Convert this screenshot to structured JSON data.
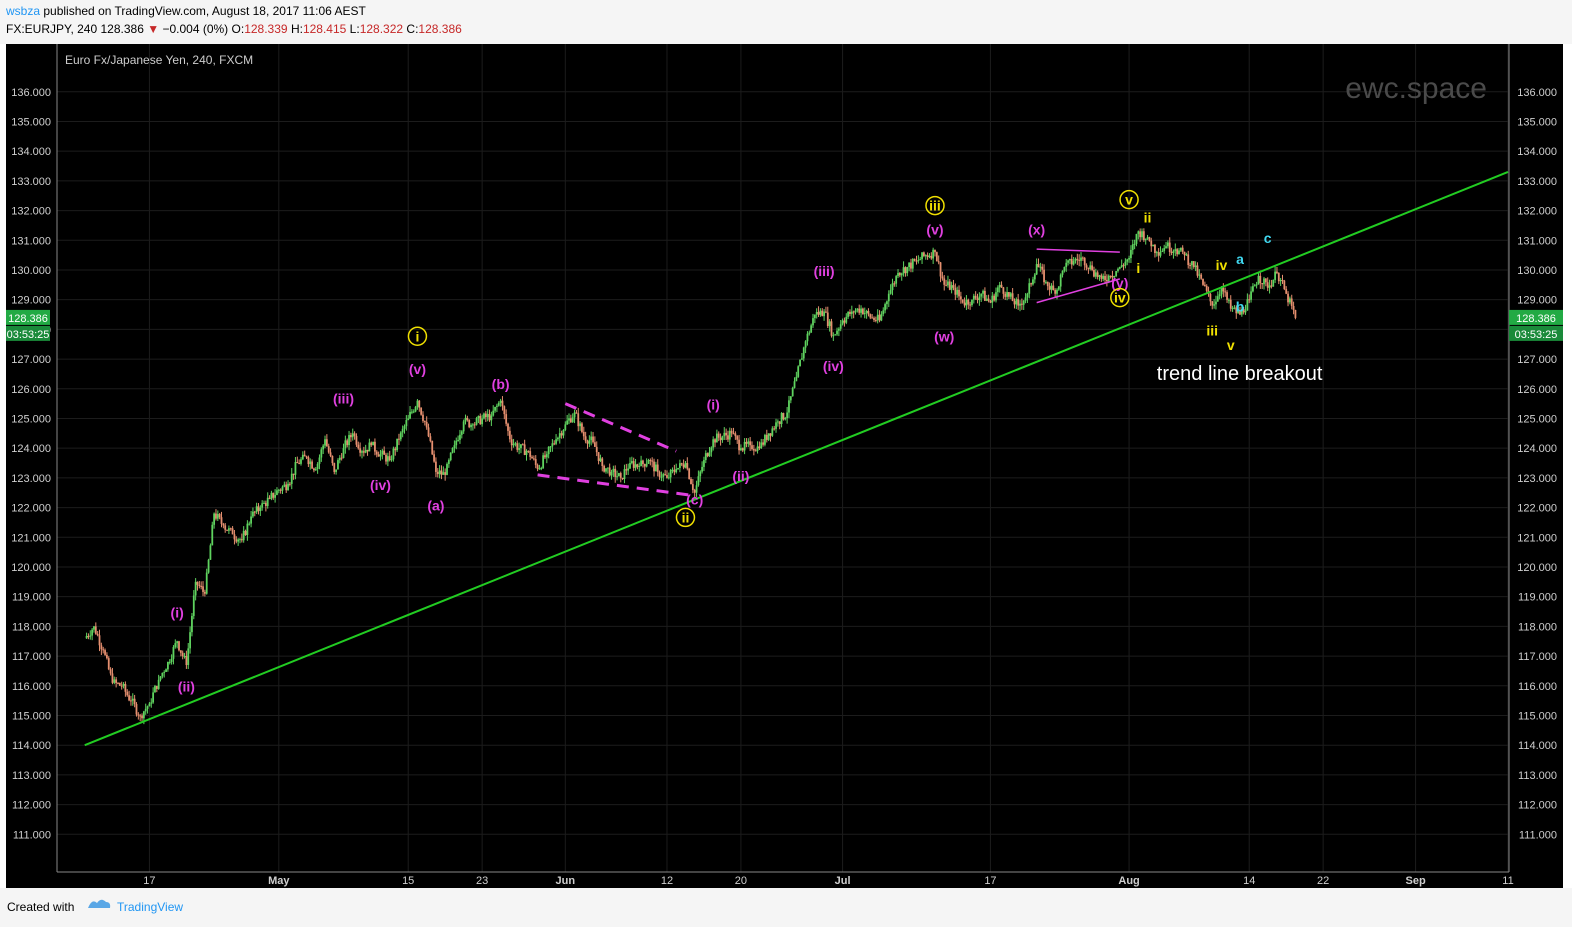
{
  "header": {
    "user": "wsbza",
    "published_text": "published on TradingView.com, August 18, 2017 11:06 AEST",
    "symbol": "FX:EURJPY, 240",
    "last": "128.386",
    "change": "−0.004 (0%)",
    "open_label": "O:",
    "open": "128.339",
    "high_label": "H:",
    "high": "128.415",
    "low_label": "L:",
    "low": "128.322",
    "close_label": "C:",
    "close": "128.386"
  },
  "footer": {
    "created_with": "Created with",
    "brand": "TradingView"
  },
  "colors": {
    "background": "#000000",
    "up": "#5fd35f",
    "down": "#e58f6f",
    "trendline": "#22cc22",
    "magenta": "#e040e0",
    "yellow": "#f0e000",
    "cyan": "#40d8f0",
    "price_badge": "#22aa44"
  },
  "chart_data": {
    "type": "candlestick",
    "title": "Euro Fx/Japanese Yen, 240, FXCM",
    "watermark": "ewc.space",
    "x_ticks": [
      "17",
      "May",
      "15",
      "23",
      "Jun",
      "12",
      "20",
      "Jul",
      "17",
      "Aug",
      "14",
      "22",
      "Sep",
      "11"
    ],
    "y_ticks": [
      "136.000",
      "135.000",
      "134.000",
      "133.000",
      "132.000",
      "131.000",
      "130.000",
      "129.000",
      "128.000",
      "127.000",
      "126.000",
      "125.000",
      "124.000",
      "123.000",
      "122.000",
      "121.000",
      "120.000",
      "119.000",
      "118.000",
      "117.000",
      "116.000",
      "115.000",
      "114.000",
      "113.000",
      "112.000",
      "111.000"
    ],
    "ylim": [
      110.0,
      136.8
    ],
    "last_price": "128.386",
    "countdown": "03:53:25",
    "price_path": [
      {
        "date": "2017-04-10",
        "price": 117.6
      },
      {
        "date": "2017-04-11",
        "price": 118.0
      },
      {
        "date": "2017-04-12",
        "price": 117.2
      },
      {
        "date": "2017-04-13",
        "price": 116.1
      },
      {
        "date": "2017-04-14",
        "price": 116.0
      },
      {
        "date": "2017-04-15",
        "price": 115.5
      },
      {
        "date": "2017-04-16",
        "price": 115.0
      },
      {
        "date": "2017-04-17",
        "price": 115.4
      },
      {
        "date": "2017-04-18",
        "price": 116.2
      },
      {
        "date": "2017-04-19",
        "price": 116.8
      },
      {
        "date": "2017-04-20",
        "price": 117.5
      },
      {
        "date": "2017-04-21",
        "price": 116.7
      },
      {
        "date": "2017-04-22",
        "price": 119.5
      },
      {
        "date": "2017-04-23",
        "price": 119.1
      },
      {
        "date": "2017-04-24",
        "price": 121.8
      },
      {
        "date": "2017-04-25",
        "price": 121.4
      },
      {
        "date": "2017-04-26",
        "price": 121.1
      },
      {
        "date": "2017-04-27",
        "price": 120.9
      },
      {
        "date": "2017-04-28",
        "price": 121.7
      },
      {
        "date": "2017-04-29",
        "price": 122.0
      },
      {
        "date": "2017-04-30",
        "price": 122.3
      },
      {
        "date": "2017-05-01",
        "price": 122.6
      },
      {
        "date": "2017-05-02",
        "price": 122.8
      },
      {
        "date": "2017-05-03",
        "price": 123.5
      },
      {
        "date": "2017-05-04",
        "price": 123.7
      },
      {
        "date": "2017-05-05",
        "price": 123.3
      },
      {
        "date": "2017-05-06",
        "price": 124.3
      },
      {
        "date": "2017-05-07",
        "price": 123.2
      },
      {
        "date": "2017-05-08",
        "price": 124.0
      },
      {
        "date": "2017-05-09",
        "price": 124.5
      },
      {
        "date": "2017-05-10",
        "price": 123.9
      },
      {
        "date": "2017-05-11",
        "price": 124.1
      },
      {
        "date": "2017-05-12",
        "price": 123.8
      },
      {
        "date": "2017-05-13",
        "price": 123.6
      },
      {
        "date": "2017-05-14",
        "price": 124.3
      },
      {
        "date": "2017-05-15",
        "price": 125.0
      },
      {
        "date": "2017-05-16",
        "price": 125.6
      },
      {
        "date": "2017-05-17",
        "price": 124.7
      },
      {
        "date": "2017-05-18",
        "price": 123.2
      },
      {
        "date": "2017-05-19",
        "price": 123.1
      },
      {
        "date": "2017-05-20",
        "price": 124.1
      },
      {
        "date": "2017-05-21",
        "price": 124.9
      },
      {
        "date": "2017-05-22",
        "price": 124.8
      },
      {
        "date": "2017-05-23",
        "price": 125.0
      },
      {
        "date": "2017-05-24",
        "price": 125.1
      },
      {
        "date": "2017-05-25",
        "price": 125.6
      },
      {
        "date": "2017-05-26",
        "price": 124.3
      },
      {
        "date": "2017-05-27",
        "price": 124.0
      },
      {
        "date": "2017-05-28",
        "price": 123.9
      },
      {
        "date": "2017-05-29",
        "price": 123.3
      },
      {
        "date": "2017-05-30",
        "price": 123.8
      },
      {
        "date": "2017-05-31",
        "price": 124.3
      },
      {
        "date": "2017-06-01",
        "price": 124.8
      },
      {
        "date": "2017-06-02",
        "price": 125.2
      },
      {
        "date": "2017-06-03",
        "price": 124.4
      },
      {
        "date": "2017-06-04",
        "price": 124.2
      },
      {
        "date": "2017-06-05",
        "price": 123.4
      },
      {
        "date": "2017-06-06",
        "price": 123.2
      },
      {
        "date": "2017-06-07",
        "price": 123.0
      },
      {
        "date": "2017-06-08",
        "price": 123.5
      },
      {
        "date": "2017-06-09",
        "price": 123.4
      },
      {
        "date": "2017-06-10",
        "price": 123.6
      },
      {
        "date": "2017-06-11",
        "price": 123.2
      },
      {
        "date": "2017-06-12",
        "price": 123.0
      },
      {
        "date": "2017-06-13",
        "price": 123.3
      },
      {
        "date": "2017-06-14",
        "price": 123.5
      },
      {
        "date": "2017-06-15",
        "price": 122.5
      },
      {
        "date": "2017-06-16",
        "price": 123.6
      },
      {
        "date": "2017-06-17",
        "price": 124.3
      },
      {
        "date": "2017-06-18",
        "price": 124.4
      },
      {
        "date": "2017-06-19",
        "price": 124.5
      },
      {
        "date": "2017-06-20",
        "price": 124.0
      },
      {
        "date": "2017-06-21",
        "price": 124.1
      },
      {
        "date": "2017-06-22",
        "price": 124.0
      },
      {
        "date": "2017-06-23",
        "price": 124.5
      },
      {
        "date": "2017-06-24",
        "price": 124.9
      },
      {
        "date": "2017-06-25",
        "price": 125.2
      },
      {
        "date": "2017-06-26",
        "price": 126.4
      },
      {
        "date": "2017-06-27",
        "price": 127.6
      },
      {
        "date": "2017-06-28",
        "price": 128.5
      },
      {
        "date": "2017-06-29",
        "price": 128.6
      },
      {
        "date": "2017-06-30",
        "price": 127.8
      },
      {
        "date": "2017-07-01",
        "price": 128.3
      },
      {
        "date": "2017-07-02",
        "price": 128.6
      },
      {
        "date": "2017-07-03",
        "price": 128.7
      },
      {
        "date": "2017-07-04",
        "price": 128.4
      },
      {
        "date": "2017-07-05",
        "price": 128.3
      },
      {
        "date": "2017-07-06",
        "price": 129.2
      },
      {
        "date": "2017-07-07",
        "price": 129.9
      },
      {
        "date": "2017-07-08",
        "price": 130.1
      },
      {
        "date": "2017-07-09",
        "price": 130.3
      },
      {
        "date": "2017-07-10",
        "price": 130.5
      },
      {
        "date": "2017-07-11",
        "price": 130.6
      },
      {
        "date": "2017-07-12",
        "price": 129.5
      },
      {
        "date": "2017-07-13",
        "price": 129.4
      },
      {
        "date": "2017-07-14",
        "price": 128.9
      },
      {
        "date": "2017-07-15",
        "price": 129.0
      },
      {
        "date": "2017-07-16",
        "price": 129.2
      },
      {
        "date": "2017-07-17",
        "price": 128.9
      },
      {
        "date": "2017-07-18",
        "price": 129.5
      },
      {
        "date": "2017-07-19",
        "price": 129.1
      },
      {
        "date": "2017-07-20",
        "price": 128.8
      },
      {
        "date": "2017-07-21",
        "price": 129.2
      },
      {
        "date": "2017-07-22",
        "price": 130.2
      },
      {
        "date": "2017-07-23",
        "price": 129.6
      },
      {
        "date": "2017-07-24",
        "price": 129.2
      },
      {
        "date": "2017-07-25",
        "price": 130.1
      },
      {
        "date": "2017-07-26",
        "price": 130.3
      },
      {
        "date": "2017-07-27",
        "price": 130.4
      },
      {
        "date": "2017-07-28",
        "price": 130.0
      },
      {
        "date": "2017-07-29",
        "price": 129.7
      },
      {
        "date": "2017-07-30",
        "price": 129.8
      },
      {
        "date": "2017-07-31",
        "price": 130.1
      },
      {
        "date": "2017-08-01",
        "price": 130.4
      },
      {
        "date": "2017-08-02",
        "price": 131.3
      },
      {
        "date": "2017-08-03",
        "price": 131.1
      },
      {
        "date": "2017-08-04",
        "price": 130.6
      },
      {
        "date": "2017-08-05",
        "price": 130.8
      },
      {
        "date": "2017-08-06",
        "price": 130.7
      },
      {
        "date": "2017-08-07",
        "price": 130.5
      },
      {
        "date": "2017-08-08",
        "price": 130.1
      },
      {
        "date": "2017-08-09",
        "price": 129.5
      },
      {
        "date": "2017-08-10",
        "price": 128.8
      },
      {
        "date": "2017-08-11",
        "price": 129.4
      },
      {
        "date": "2017-08-12",
        "price": 128.7
      },
      {
        "date": "2017-08-13",
        "price": 128.5
      },
      {
        "date": "2017-08-14",
        "price": 129.0
      },
      {
        "date": "2017-08-15",
        "price": 129.8
      },
      {
        "date": "2017-08-16",
        "price": 129.4
      },
      {
        "date": "2017-08-17",
        "price": 129.9
      },
      {
        "date": "2017-08-18",
        "price": 129.2
      },
      {
        "date": "2017-08-19",
        "price": 128.386
      }
    ],
    "trendline": [
      {
        "date": "2017-04-10",
        "price": 114.0
      },
      {
        "date": "2017-09-11",
        "price": 133.3
      }
    ],
    "channel_lines": [
      {
        "style": "dashed",
        "from": {
          "date": "2017-06-01",
          "price": 125.5
        },
        "to": {
          "date": "2017-06-13",
          "price": 123.9
        }
      },
      {
        "style": "dashed",
        "from": {
          "date": "2017-05-29",
          "price": 123.1
        },
        "to": {
          "date": "2017-06-15",
          "price": 122.4
        }
      },
      {
        "style": "solid",
        "from": {
          "date": "2017-07-22",
          "price": 130.7
        },
        "to": {
          "date": "2017-07-31",
          "price": 130.6
        }
      },
      {
        "style": "solid",
        "from": {
          "date": "2017-07-22",
          "price": 128.9
        },
        "to": {
          "date": "2017-07-31",
          "price": 129.7
        }
      }
    ],
    "wave_labels": [
      {
        "text": "(i)",
        "color": "magenta",
        "date": "2017-04-20",
        "price": 118.3
      },
      {
        "text": "(ii)",
        "color": "magenta",
        "date": "2017-04-21",
        "price": 115.8
      },
      {
        "text": "(iii)",
        "color": "magenta",
        "date": "2017-05-08",
        "price": 125.5
      },
      {
        "text": "(iv)",
        "color": "magenta",
        "date": "2017-05-12",
        "price": 122.6
      },
      {
        "text": "(v)",
        "color": "magenta",
        "date": "2017-05-16",
        "price": 126.5
      },
      {
        "text": "i",
        "color": "yellow",
        "circled": true,
        "date": "2017-05-16",
        "price": 127.6
      },
      {
        "text": "(a)",
        "color": "magenta",
        "date": "2017-05-18",
        "price": 121.9
      },
      {
        "text": "(b)",
        "color": "magenta",
        "date": "2017-05-25",
        "price": 126.0
      },
      {
        "text": "(c)",
        "color": "magenta",
        "date": "2017-06-15",
        "price": 122.1
      },
      {
        "text": "ii",
        "color": "yellow",
        "circled": true,
        "date": "2017-06-14",
        "price": 121.5
      },
      {
        "text": "(i)",
        "color": "magenta",
        "date": "2017-06-17",
        "price": 125.3
      },
      {
        "text": "(ii)",
        "color": "magenta",
        "date": "2017-06-20",
        "price": 122.9
      },
      {
        "text": "(iii)",
        "color": "magenta",
        "date": "2017-06-29",
        "price": 129.8
      },
      {
        "text": "(iv)",
        "color": "magenta",
        "date": "2017-06-30",
        "price": 126.6
      },
      {
        "text": "(v)",
        "color": "magenta",
        "date": "2017-07-11",
        "price": 131.2
      },
      {
        "text": "iii",
        "color": "yellow",
        "circled": true,
        "date": "2017-07-11",
        "price": 132.0
      },
      {
        "text": "(w)",
        "color": "magenta",
        "date": "2017-07-12",
        "price": 127.6
      },
      {
        "text": "(x)",
        "color": "magenta",
        "date": "2017-07-22",
        "price": 131.2
      },
      {
        "text": "(y)",
        "color": "magenta",
        "date": "2017-07-31",
        "price": 129.4
      },
      {
        "text": "iv",
        "color": "yellow",
        "circled": true,
        "date": "2017-07-31",
        "price": 128.9
      },
      {
        "text": "v",
        "color": "yellow",
        "circled": true,
        "date": "2017-08-01",
        "price": 132.2
      },
      {
        "text": "i",
        "color": "yellow",
        "date": "2017-08-02",
        "price": 129.9
      },
      {
        "text": "ii",
        "color": "yellow",
        "date": "2017-08-03",
        "price": 131.6
      },
      {
        "text": "iii",
        "color": "yellow",
        "date": "2017-08-10",
        "price": 127.8
      },
      {
        "text": "iv",
        "color": "yellow",
        "date": "2017-08-11",
        "price": 130.0
      },
      {
        "text": "v",
        "color": "yellow",
        "date": "2017-08-12",
        "price": 127.3
      },
      {
        "text": "a",
        "color": "cyan",
        "date": "2017-08-13",
        "price": 130.2
      },
      {
        "text": "b",
        "color": "cyan",
        "date": "2017-08-13",
        "price": 128.6
      },
      {
        "text": "c",
        "color": "cyan",
        "date": "2017-08-16",
        "price": 130.9
      }
    ],
    "annotation": "trend line breakout"
  }
}
